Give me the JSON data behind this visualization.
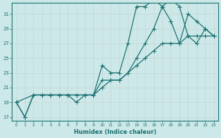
{
  "xlabel": "Humidex (Indice chaleur)",
  "bg_color": "#cce8e8",
  "grid_color": "#d4e8e8",
  "line_color": "#1a7070",
  "xlim": [
    -0.5,
    23.5
  ],
  "ylim": [
    16.5,
    32.5
  ],
  "xticks": [
    0,
    1,
    2,
    3,
    4,
    5,
    6,
    7,
    8,
    9,
    10,
    11,
    12,
    13,
    14,
    15,
    16,
    17,
    18,
    19,
    20,
    21,
    22,
    23
  ],
  "yticks": [
    17,
    19,
    21,
    23,
    25,
    27,
    29,
    31
  ],
  "line1_x": [
    0,
    1,
    2,
    3,
    4,
    5,
    6,
    7,
    8,
    9,
    10,
    11,
    12,
    13,
    14,
    15,
    16,
    17,
    18,
    19,
    20,
    21,
    22,
    23
  ],
  "line1_y": [
    19,
    17,
    20,
    20,
    20,
    20,
    20,
    19,
    20,
    20,
    24,
    23,
    23,
    27,
    32,
    32,
    33,
    32,
    30,
    27,
    31,
    30,
    29,
    28
  ],
  "line2_x": [
    0,
    1,
    2,
    3,
    4,
    5,
    6,
    7,
    8,
    9,
    10,
    11,
    12,
    13,
    14,
    15,
    16,
    17,
    18,
    19,
    20,
    21,
    22,
    23
  ],
  "line2_y": [
    19,
    17,
    20,
    20,
    20,
    20,
    20,
    20,
    20,
    20,
    22,
    22,
    22,
    23,
    25,
    27,
    29,
    32,
    33,
    32,
    28,
    27,
    29,
    28
  ],
  "line3_x": [
    0,
    2,
    3,
    4,
    5,
    6,
    7,
    8,
    9,
    10,
    11,
    12,
    13,
    14,
    15,
    16,
    17,
    18,
    19,
    20,
    21,
    22,
    23
  ],
  "line3_y": [
    19,
    20,
    20,
    20,
    20,
    20,
    20,
    20,
    20,
    21,
    22,
    22,
    23,
    24,
    25,
    26,
    27,
    27,
    27,
    28,
    28,
    28,
    28
  ]
}
